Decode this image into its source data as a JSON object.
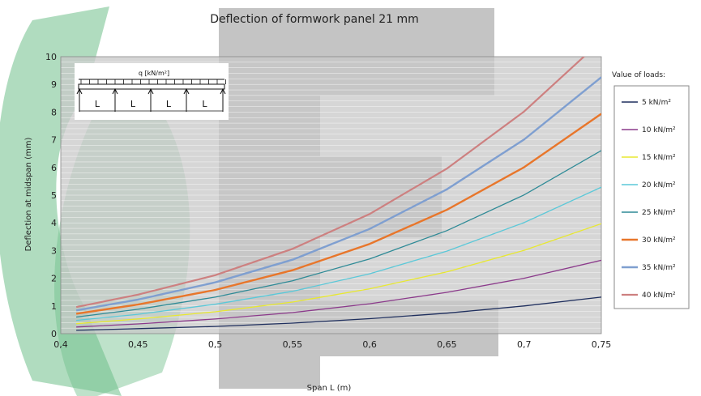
{
  "chart_data": {
    "type": "line",
    "title": "Deflection of formwork panel 21 mm",
    "xlabel": "Span L (m)",
    "ylabel": "Deflection at midspan (mm)",
    "xlim": [
      0.4,
      0.75
    ],
    "ylim": [
      0,
      10
    ],
    "x_ticks": [
      "0,4",
      "0,45",
      "0,5",
      "0,55",
      "0,6",
      "0,65",
      "0,7",
      "0,75"
    ],
    "y_ticks": [
      "0",
      "1",
      "2",
      "3",
      "4",
      "5",
      "6",
      "7",
      "8",
      "9",
      "10"
    ],
    "grid": "horizontal",
    "legend_title": "Value of loads:",
    "legend_position": "right",
    "x": [
      0.41,
      0.45,
      0.5,
      0.55,
      0.6,
      0.65,
      0.7,
      0.75
    ],
    "series": [
      {
        "name": "5 kN/m²",
        "color": "#1f2f5e",
        "values": [
          0.12,
          0.18,
          0.26,
          0.38,
          0.54,
          0.74,
          1.0,
          1.32
        ]
      },
      {
        "name": "10 kN/m²",
        "color": "#8b3a8b",
        "values": [
          0.24,
          0.35,
          0.53,
          0.76,
          1.08,
          1.49,
          2.0,
          2.65
        ]
      },
      {
        "name": "15 kN/m²",
        "color": "#e8e830",
        "values": [
          0.36,
          0.53,
          0.79,
          1.14,
          1.62,
          2.23,
          3.01,
          3.97
        ]
      },
      {
        "name": "20 kN/m²",
        "color": "#5bc8d8",
        "values": [
          0.48,
          0.7,
          1.06,
          1.53,
          2.16,
          2.98,
          4.01,
          5.29
        ]
      },
      {
        "name": "25 kN/m²",
        "color": "#2e8a96",
        "values": [
          0.6,
          0.88,
          1.32,
          1.91,
          2.7,
          3.72,
          5.01,
          6.61
        ]
      },
      {
        "name": "30 kN/m²",
        "color": "#e8762b",
        "values": [
          0.72,
          1.05,
          1.58,
          2.29,
          3.24,
          4.47,
          6.01,
          7.94
        ]
      },
      {
        "name": "35 kN/m²",
        "color": "#7f9fd0",
        "values": [
          0.84,
          1.23,
          1.85,
          2.67,
          3.78,
          5.21,
          7.01,
          9.26
        ]
      },
      {
        "name": "40 kN/m²",
        "color": "#cd8080",
        "values": [
          0.96,
          1.41,
          2.11,
          3.06,
          4.32,
          5.96,
          8.02,
          10.58
        ]
      }
    ]
  },
  "diagram": {
    "load_label": "q [kN/m²]",
    "span_label": "L"
  },
  "colors": {
    "plot_bg": "#c8c8c8",
    "grid": "#ffffff",
    "watermark_green": "#6fbf8a",
    "watermark_gray": "#555555"
  }
}
